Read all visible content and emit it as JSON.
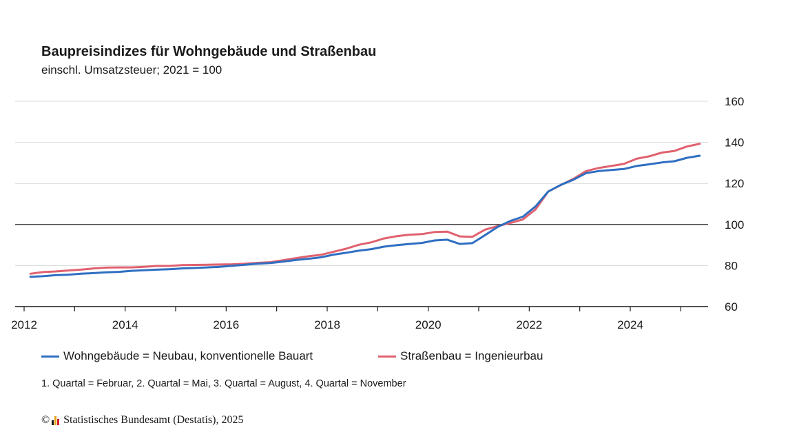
{
  "header": {
    "title": "Baupreisindizes für Wohngebäude und Straßenbau",
    "subtitle": "einschl. Umsatzsteuer; 2021 = 100"
  },
  "footnote": "1. Quartal = Februar, 2. Quartal = Mai, 3. Quartal = August, 4. Quartal = November",
  "source": {
    "copyright": "©",
    "text": "Statistisches Bundesamt (Destatis), 2025"
  },
  "colors": {
    "wohngebaeude": "#2f6fc1",
    "strassenbau": "#e0616f",
    "reference_line": "#333333",
    "grid": "#d9d9d9",
    "logo": [
      "#1a1a1a",
      "#e3a51b",
      "#d11f2f"
    ]
  },
  "chart_data": {
    "type": "line",
    "xlim": [
      2012,
      2025.5
    ],
    "ylim": [
      60,
      160
    ],
    "x_ticks": [
      "2012",
      "2014",
      "2016",
      "2018",
      "2020",
      "2022",
      "2024"
    ],
    "x_tick_values": [
      2012,
      2014,
      2016,
      2018,
      2020,
      2022,
      2024
    ],
    "y_ticks": [
      "60",
      "80",
      "100",
      "120",
      "140",
      "160"
    ],
    "y_tick_values": [
      60,
      80,
      100,
      120,
      140,
      160
    ],
    "y_axis_side": "right",
    "grid": true,
    "reference_value": 100,
    "legend_placement": "bottom",
    "x": [
      2012.125,
      2012.375,
      2012.625,
      2012.875,
      2013.125,
      2013.375,
      2013.625,
      2013.875,
      2014.125,
      2014.375,
      2014.625,
      2014.875,
      2015.125,
      2015.375,
      2015.625,
      2015.875,
      2016.125,
      2016.375,
      2016.625,
      2016.875,
      2017.125,
      2017.375,
      2017.625,
      2017.875,
      2018.125,
      2018.375,
      2018.625,
      2018.875,
      2019.125,
      2019.375,
      2019.625,
      2019.875,
      2020.125,
      2020.375,
      2020.625,
      2020.875,
      2021.125,
      2021.375,
      2021.625,
      2021.875,
      2022.125,
      2022.375,
      2022.625,
      2022.875,
      2023.125,
      2023.375,
      2023.625,
      2023.875,
      2024.125,
      2024.375,
      2024.625,
      2024.875,
      2025.125,
      2025.375
    ],
    "series": [
      {
        "name": "Wohngebäude = Neubau, konventionelle Bauart",
        "color_key": "wohngebaeude",
        "values": [
          74.5,
          74.8,
          75.3,
          75.5,
          76.0,
          76.3,
          76.7,
          76.9,
          77.4,
          77.7,
          78.0,
          78.2,
          78.6,
          78.8,
          79.1,
          79.4,
          79.9,
          80.4,
          80.9,
          81.2,
          81.9,
          82.7,
          83.3,
          84.0,
          85.3,
          86.2,
          87.2,
          88.0,
          89.2,
          89.9,
          90.5,
          91.0,
          92.2,
          92.6,
          90.5,
          90.9,
          94.8,
          98.8,
          101.7,
          103.8,
          108.8,
          116.0,
          119.3,
          121.8,
          125.0,
          126.0,
          126.5,
          127.0,
          128.5,
          129.3,
          130.2,
          130.8,
          132.5,
          133.5
        ]
      },
      {
        "name": "Straßenbau = Ingenieurbau",
        "color_key": "strassenbau",
        "values": [
          76.0,
          76.8,
          77.1,
          77.6,
          78.0,
          78.6,
          79.0,
          79.1,
          79.1,
          79.4,
          79.8,
          79.8,
          80.2,
          80.3,
          80.4,
          80.5,
          80.6,
          80.9,
          81.3,
          81.6,
          82.6,
          83.6,
          84.5,
          85.2,
          86.7,
          88.2,
          90.1,
          91.3,
          93.2,
          94.3,
          95.0,
          95.3,
          96.3,
          96.5,
          94.2,
          94.0,
          97.5,
          99.2,
          100.7,
          102.5,
          107.3,
          116.0,
          119.2,
          122.2,
          126.0,
          127.5,
          128.5,
          129.5,
          132.0,
          133.2,
          135.0,
          135.8,
          138.0,
          139.3
        ]
      }
    ]
  }
}
